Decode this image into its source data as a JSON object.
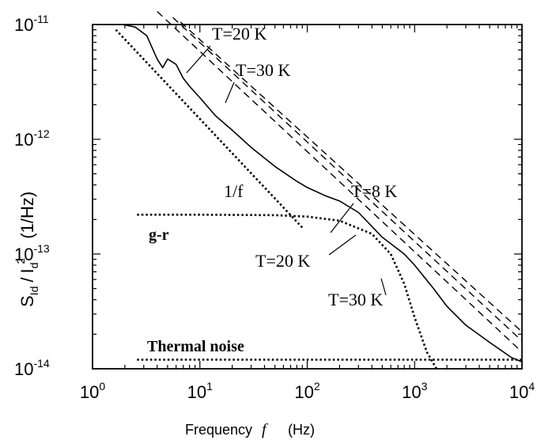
{
  "chart_data": {
    "type": "line",
    "x_scale": "log",
    "y_scale": "log",
    "xlim": [
      1,
      10000
    ],
    "ylim": [
      1e-14,
      1e-11
    ],
    "x_ticks": [
      {
        "base": "10",
        "exp": "0",
        "value": 1
      },
      {
        "base": "10",
        "exp": "1",
        "value": 10
      },
      {
        "base": "10",
        "exp": "2",
        "value": 100
      },
      {
        "base": "10",
        "exp": "3",
        "value": 1000
      },
      {
        "base": "10",
        "exp": "4",
        "value": 10000
      }
    ],
    "y_ticks": [
      {
        "base": "10",
        "exp": "-14",
        "value": 1e-14
      },
      {
        "base": "10",
        "exp": "-13",
        "value": 1e-13
      },
      {
        "base": "10",
        "exp": "-12",
        "value": 1e-12
      },
      {
        "base": "10",
        "exp": "-11",
        "value": 1e-11
      }
    ],
    "xlabel": {
      "text": "Frequency",
      "symbol": "f",
      "unit": "(Hz)"
    },
    "ylabel": {
      "S": "S",
      "S_sub": "Id",
      "slash": "/",
      "I": "I",
      "I_sub": "d",
      "I_sup": "2",
      "unit": "(1/Hz)"
    },
    "series": [
      {
        "style": "solid",
        "x": [
          1.9,
          2.5,
          3.2,
          4,
          4.5,
          5,
          6,
          7,
          8,
          10,
          14,
          20,
          30,
          50,
          80,
          100,
          150,
          200,
          300,
          500,
          800,
          1000,
          1500,
          2000,
          3000,
          5000,
          8000,
          10000
        ],
        "y": [
          1e-11,
          9.5e-12,
          8e-12,
          5e-12,
          4.2e-12,
          5e-12,
          4.5e-12,
          3.4e-12,
          2.9e-12,
          2.3e-12,
          1.6e-12,
          1.2e-12,
          8.5e-13,
          5.8e-13,
          4.3e-13,
          3.8e-13,
          3.2e-13,
          2.9e-13,
          2.3e-13,
          1.4e-13,
          1e-13,
          8e-14,
          5e-14,
          3.5e-14,
          2.4e-14,
          1.7e-14,
          1.25e-14,
          1.15e-14
        ]
      },
      {
        "style": "dashed",
        "x": [
          4,
          10000
        ],
        "y": [
          1.3e-11,
          1.4e-14
        ]
      },
      {
        "style": "dashed",
        "x": [
          5.6,
          10000
        ],
        "y": [
          1.15e-11,
          1.75e-14
        ]
      },
      {
        "style": "dashed",
        "x": [
          6.6,
          10000
        ],
        "y": [
          1.05e-11,
          2.1e-14
        ]
      },
      {
        "style": "dotted",
        "x": [
          1.65,
          90
        ],
        "y": [
          9e-12,
          1.7e-13
        ]
      },
      {
        "style": "dotted",
        "x": [
          2.6,
          10,
          50,
          100,
          200,
          400,
          600,
          800,
          1000,
          1300,
          1600
        ],
        "y": [
          2.2e-13,
          2.2e-13,
          2.18e-13,
          2.12e-13,
          1.95e-13,
          1.5e-13,
          1e-13,
          5.5e-14,
          2.8e-14,
          1.4e-14,
          1e-14
        ]
      },
      {
        "style": "dotted",
        "x": [
          2.6,
          10000
        ],
        "y": [
          1.2e-14,
          1.2e-14
        ]
      }
    ],
    "annotations": [
      {
        "text": "T=20 K"
      },
      {
        "text": "T=30 K"
      },
      {
        "text": "1/f"
      },
      {
        "text": "T=8 K"
      },
      {
        "text": "g-r"
      },
      {
        "text": "T=20 K"
      },
      {
        "text": "T=30 K"
      },
      {
        "text": "Thermal noise"
      }
    ]
  }
}
